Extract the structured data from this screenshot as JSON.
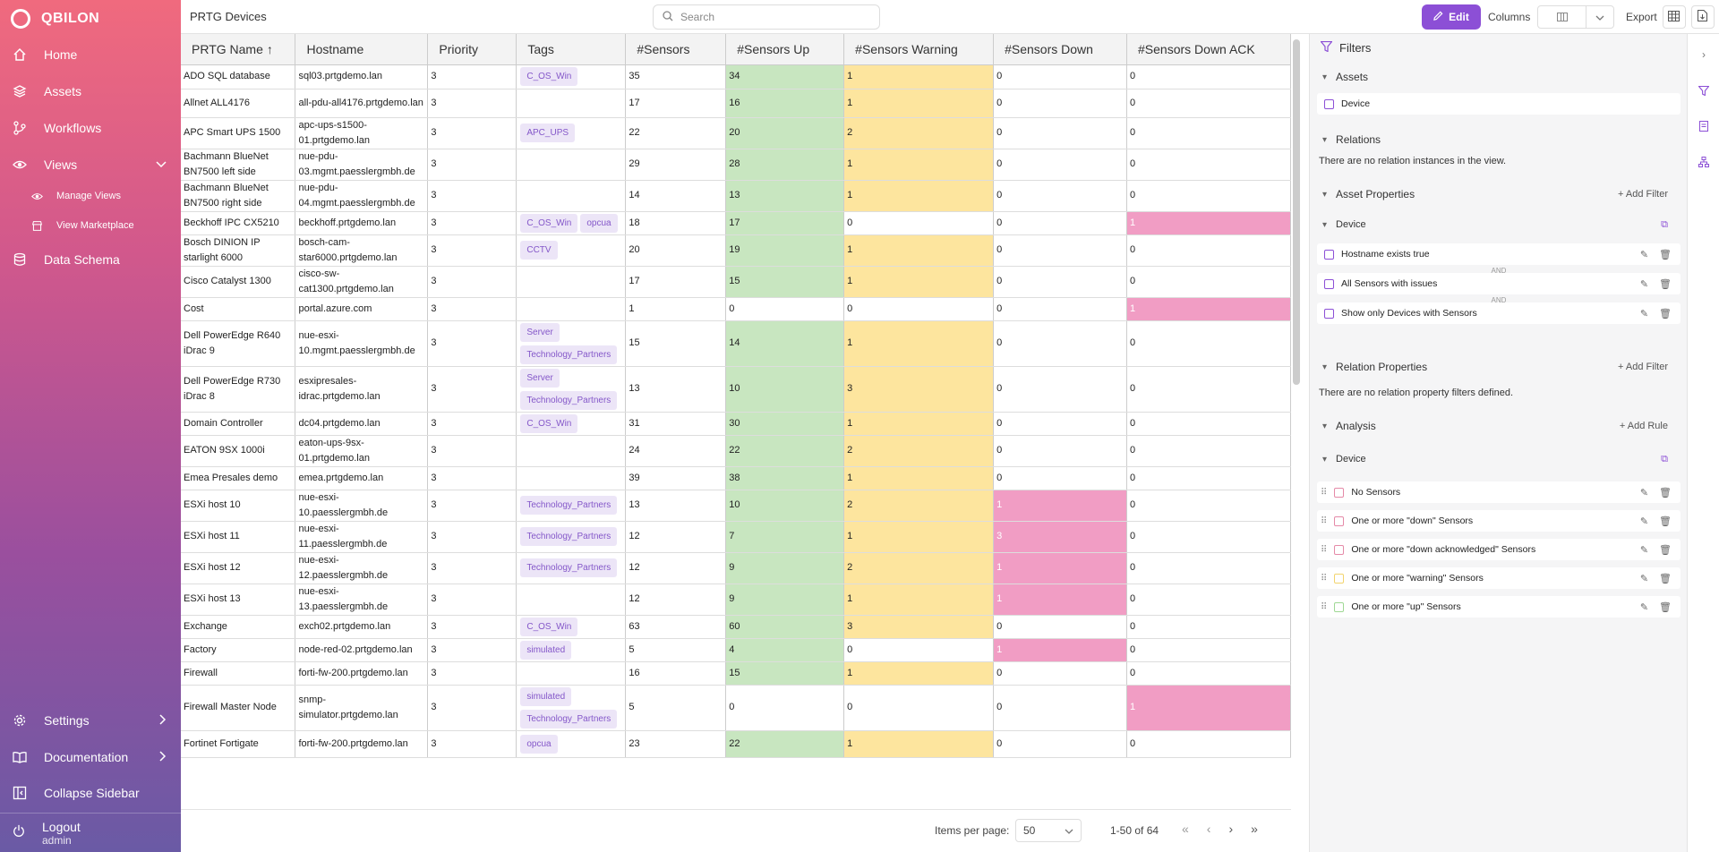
{
  "brand": "QBILON",
  "sidebar": {
    "home": "Home",
    "assets": "Assets",
    "workflows": "Workflows",
    "views": "Views",
    "manage_views": "Manage Views",
    "view_marketplace": "View Marketplace",
    "data_schema": "Data Schema",
    "settings": "Settings",
    "documentation": "Documentation",
    "collapse": "Collapse Sidebar",
    "logout": "Logout",
    "user": "admin"
  },
  "header": {
    "title": "PRTG Devices",
    "search_placeholder": "Search",
    "edit": "Edit",
    "columns": "Columns",
    "export": "Export"
  },
  "table": {
    "columns": [
      "PRTG Name",
      "Hostname",
      "Priority",
      "Tags",
      "#Sensors",
      "#Sensors Up",
      "#Sensors Warning",
      "#Sensors Down",
      "#Sensors Down ACK"
    ],
    "sort_indicator": "↑",
    "rows": [
      {
        "name": "ADO SQL database",
        "host": "sql03.prtgdemo.lan",
        "prio": "3",
        "tags": [
          "C_OS_Win"
        ],
        "sensors": "35",
        "up": "34",
        "warn": "1",
        "down": "0",
        "ack": "0"
      },
      {
        "name": "Allnet ALL4176",
        "host": "all-pdu-all4176.prtgdemo.lan",
        "prio": "3",
        "tags": [],
        "sensors": "17",
        "up": "16",
        "warn": "1",
        "down": "0",
        "ack": "0"
      },
      {
        "name": "APC Smart UPS 1500",
        "host": "apc-ups-s1500-01.prtgdemo.lan",
        "prio": "3",
        "tags": [
          "APC_UPS"
        ],
        "sensors": "22",
        "up": "20",
        "warn": "2",
        "down": "0",
        "ack": "0"
      },
      {
        "name": "Bachmann BlueNet BN7500 left side",
        "host": "nue-pdu-03.mgmt.paesslergmbh.de",
        "prio": "3",
        "tags": [],
        "sensors": "29",
        "up": "28",
        "warn": "1",
        "down": "0",
        "ack": "0"
      },
      {
        "name": "Bachmann BlueNet BN7500 right side",
        "host": "nue-pdu-04.mgmt.paesslergmbh.de",
        "prio": "3",
        "tags": [],
        "sensors": "14",
        "up": "13",
        "warn": "1",
        "down": "0",
        "ack": "0"
      },
      {
        "name": "Beckhoff IPC CX5210",
        "host": "beckhoff.prtgdemo.lan",
        "prio": "3",
        "tags": [
          "C_OS_Win",
          "opcua"
        ],
        "sensors": "18",
        "up": "17",
        "warn": "0",
        "down": "0",
        "ack": "1"
      },
      {
        "name": "Bosch DINION IP starlight 6000",
        "host": "bosch-cam-star6000.prtgdemo.lan",
        "prio": "3",
        "tags": [
          "CCTV"
        ],
        "sensors": "20",
        "up": "19",
        "warn": "1",
        "down": "0",
        "ack": "0"
      },
      {
        "name": "Cisco Catalyst 1300",
        "host": "cisco-sw-cat1300.prtgdemo.lan",
        "prio": "3",
        "tags": [],
        "sensors": "17",
        "up": "15",
        "warn": "1",
        "down": "0",
        "ack": "0"
      },
      {
        "name": "Cost",
        "host": "portal.azure.com",
        "prio": "3",
        "tags": [],
        "sensors": "1",
        "up": "0",
        "warn": "0",
        "down": "0",
        "ack": "1"
      },
      {
        "name": "Dell PowerEdge R640 iDrac 9",
        "host": "nue-esxi-10.mgmt.paesslergmbh.de",
        "prio": "3",
        "tags": [
          "Server",
          "Technology_Partners"
        ],
        "sensors": "15",
        "up": "14",
        "warn": "1",
        "down": "0",
        "ack": "0"
      },
      {
        "name": "Dell PowerEdge R730 iDrac 8",
        "host": "esxipresales-idrac.prtgdemo.lan",
        "prio": "3",
        "tags": [
          "Server",
          "Technology_Partners"
        ],
        "sensors": "13",
        "up": "10",
        "warn": "3",
        "down": "0",
        "ack": "0"
      },
      {
        "name": "Domain Controller",
        "host": "dc04.prtgdemo.lan",
        "prio": "3",
        "tags": [
          "C_OS_Win"
        ],
        "sensors": "31",
        "up": "30",
        "warn": "1",
        "down": "0",
        "ack": "0"
      },
      {
        "name": "EATON 9SX 1000i",
        "host": "eaton-ups-9sx-01.prtgdemo.lan",
        "prio": "3",
        "tags": [],
        "sensors": "24",
        "up": "22",
        "warn": "2",
        "down": "0",
        "ack": "0"
      },
      {
        "name": "Emea Presales demo",
        "host": "emea.prtgdemo.lan",
        "prio": "3",
        "tags": [],
        "sensors": "39",
        "up": "38",
        "warn": "1",
        "down": "0",
        "ack": "0"
      },
      {
        "name": "ESXi host 10",
        "host": "nue-esxi-10.paesslergmbh.de",
        "prio": "3",
        "tags": [
          "Technology_Partners"
        ],
        "sensors": "13",
        "up": "10",
        "warn": "2",
        "down": "1",
        "ack": "0"
      },
      {
        "name": "ESXi host 11",
        "host": "nue-esxi-11.paesslergmbh.de",
        "prio": "3",
        "tags": [
          "Technology_Partners"
        ],
        "sensors": "12",
        "up": "7",
        "warn": "1",
        "down": "3",
        "ack": "0"
      },
      {
        "name": "ESXi host 12",
        "host": "nue-esxi-12.paesslergmbh.de",
        "prio": "3",
        "tags": [
          "Technology_Partners"
        ],
        "sensors": "12",
        "up": "9",
        "warn": "2",
        "down": "1",
        "ack": "0"
      },
      {
        "name": "ESXi host 13",
        "host": "nue-esxi-13.paesslergmbh.de",
        "prio": "3",
        "tags": [],
        "sensors": "12",
        "up": "9",
        "warn": "1",
        "down": "1",
        "ack": "0"
      },
      {
        "name": "Exchange",
        "host": "exch02.prtgdemo.lan",
        "prio": "3",
        "tags": [
          "C_OS_Win"
        ],
        "sensors": "63",
        "up": "60",
        "warn": "3",
        "down": "0",
        "ack": "0"
      },
      {
        "name": "Factory",
        "host": "node-red-02.prtgdemo.lan",
        "prio": "3",
        "tags": [
          "simulated"
        ],
        "sensors": "5",
        "up": "4",
        "warn": "0",
        "down": "1",
        "ack": "0"
      },
      {
        "name": "Firewall",
        "host": "forti-fw-200.prtgdemo.lan",
        "prio": "3",
        "tags": [],
        "sensors": "16",
        "up": "15",
        "warn": "1",
        "down": "0",
        "ack": "0"
      },
      {
        "name": "Firewall Master Node",
        "host": "snmp-simulator.prtgdemo.lan",
        "prio": "3",
        "tags": [
          "simulated",
          "Technology_Partners"
        ],
        "sensors": "5",
        "up": "0",
        "warn": "0",
        "down": "0",
        "ack": "1"
      },
      {
        "name": "Fortinet Fortigate",
        "host": "forti-fw-200.prtgdemo.lan",
        "prio": "3",
        "tags": [
          "opcua"
        ],
        "sensors": "23",
        "up": "22",
        "warn": "1",
        "down": "0",
        "ack": "0"
      }
    ]
  },
  "footer": {
    "items_per_page": "Items per page:",
    "page_size": "50",
    "range": "1-50 of 64"
  },
  "filters": {
    "title": "Filters",
    "assets": "Assets",
    "device": "Device",
    "relations": "Relations",
    "relations_note": "There are no relation instances in the view.",
    "asset_properties": "Asset Properties",
    "add_filter": "Add Filter",
    "ap_filters": [
      "Hostname exists true",
      "All Sensors with issues",
      "Show only Devices with Sensors"
    ],
    "and": "AND",
    "relation_properties": "Relation Properties",
    "relprop_note": "There are no relation property filters defined.",
    "analysis": "Analysis",
    "add_rule": "Add Rule",
    "rules": [
      {
        "label": "No Sensors",
        "color": "#e58aa8"
      },
      {
        "label": "One or more \"down\" Sensors",
        "color": "#e58aa8"
      },
      {
        "label": "One or more \"down acknowledged\" Sensors",
        "color": "#e58aa8"
      },
      {
        "label": "One or more \"warning\" Sensors",
        "color": "#f2d46e"
      },
      {
        "label": "One or more \"up\" Sensors",
        "color": "#9fd894"
      }
    ]
  }
}
